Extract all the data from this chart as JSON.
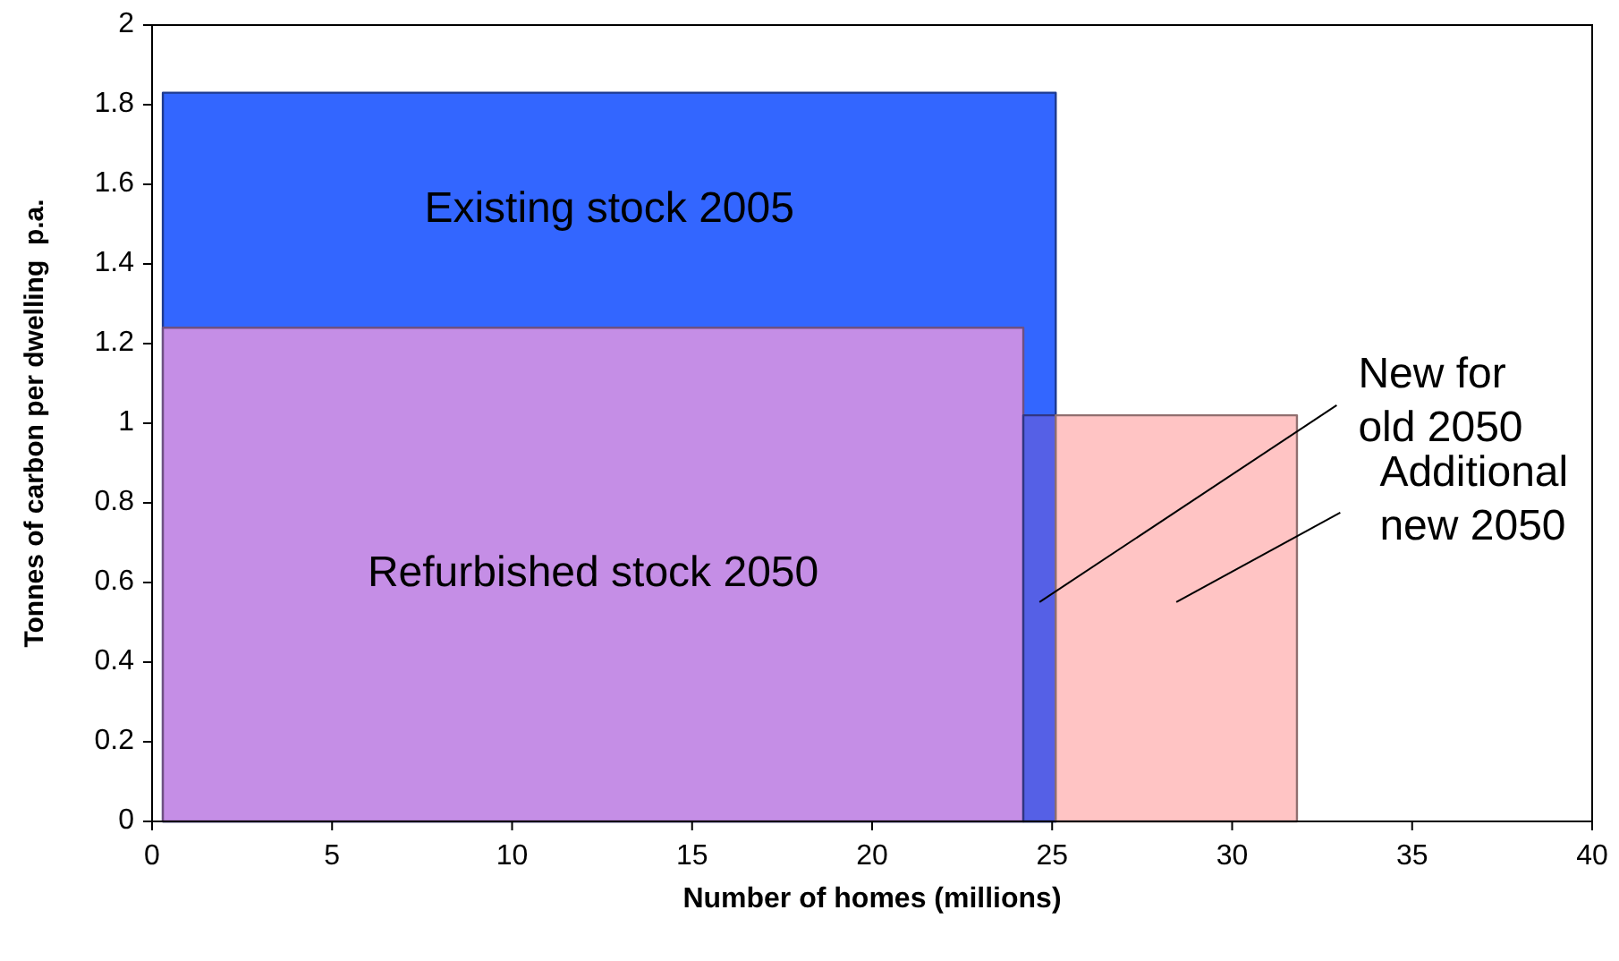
{
  "chart_data": {
    "type": "area",
    "xlabel": "Number of homes (millions)",
    "ylabel": "Tonnes of carbon per dwelling  p.a.",
    "series": [
      {
        "name": "Existing stock 2005",
        "color": "#3366ff",
        "x": [
          0.3,
          25.1
        ],
        "values": [
          1.83,
          1.83
        ]
      },
      {
        "name": "Refurbished stock 2050",
        "color": "#c58ee6",
        "x": [
          0.3,
          24.2
        ],
        "values": [
          1.24,
          1.24
        ]
      },
      {
        "name": "New for old 2050",
        "color": "#5560e6",
        "x": [
          24.2,
          25.1
        ],
        "values": [
          1.02,
          1.02
        ]
      },
      {
        "name": "Additional new 2050",
        "color": "#ffc4c4",
        "x": [
          25.1,
          31.8
        ],
        "values": [
          1.02,
          1.02
        ]
      }
    ],
    "xlim": [
      0,
      40
    ],
    "xticks": [
      0,
      5,
      10,
      15,
      20,
      25,
      30,
      35,
      40
    ],
    "ylim": [
      0,
      2
    ],
    "yticks": [
      0,
      0.2,
      0.4,
      0.6,
      0.8,
      1,
      1.2,
      1.4,
      1.6,
      1.8,
      2
    ],
    "grid": false
  }
}
